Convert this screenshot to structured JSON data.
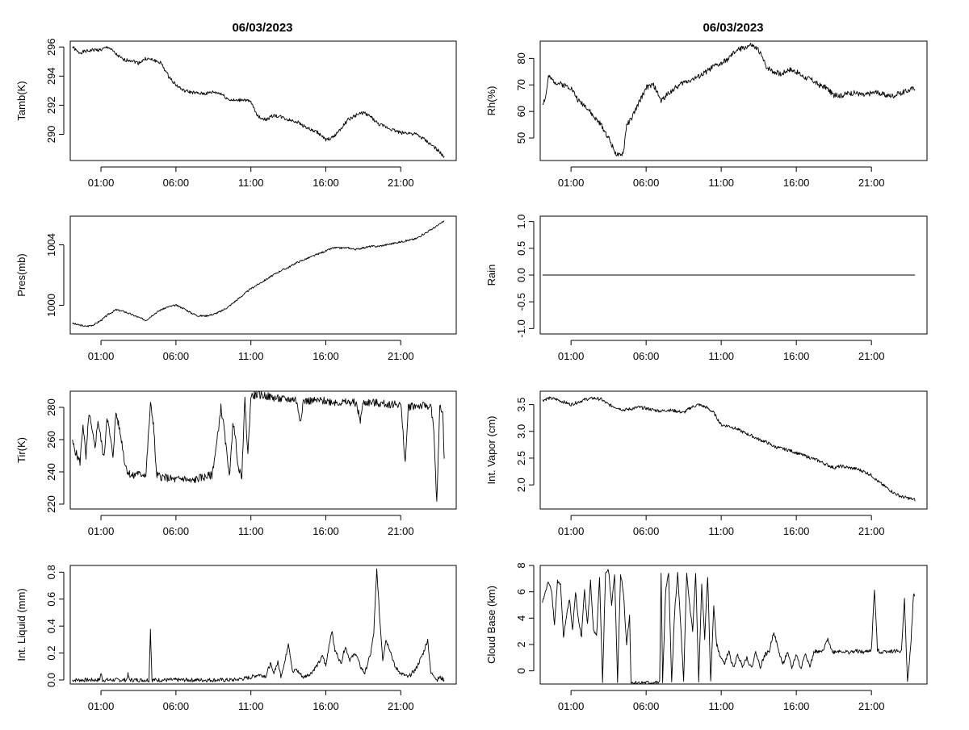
{
  "titles": {
    "left": "06/03/2023",
    "right": "06/03/2023"
  },
  "x_axis": {
    "ticks": [
      1,
      6,
      11,
      16,
      21
    ],
    "tick_labels": [
      "01:00",
      "06:00",
      "11:00",
      "16:00",
      "21:00"
    ],
    "range": [
      -1.05,
      24.7
    ]
  },
  "chart_data": [
    {
      "type": "line",
      "name": "tamb",
      "ylabel": "Tamb(K)",
      "ylim": [
        288.2,
        296.4
      ],
      "yticks": [
        290,
        292,
        294,
        296
      ],
      "ytick_labels": [
        "290",
        "292",
        "294",
        "296"
      ],
      "seed": 1,
      "x": [
        -0.9,
        -0.5,
        0.0,
        0.5,
        1.0,
        1.5,
        2.0,
        2.5,
        3.0,
        3.5,
        4.0,
        4.5,
        5.0,
        5.5,
        6.0,
        6.5,
        7.0,
        7.5,
        8.0,
        8.5,
        9.0,
        9.5,
        10.0,
        10.5,
        11.0,
        11.5,
        12.0,
        12.5,
        13.0,
        13.5,
        14.0,
        14.5,
        15.0,
        15.5,
        16.0,
        16.5,
        17.0,
        17.5,
        18.0,
        18.5,
        19.0,
        19.5,
        20.0,
        20.5,
        21.0,
        21.5,
        22.0,
        22.5,
        23.0,
        23.5,
        23.9
      ],
      "y": [
        296.0,
        295.6,
        295.7,
        295.8,
        295.8,
        296.0,
        295.5,
        295.1,
        295.1,
        294.9,
        295.2,
        295.1,
        294.9,
        294.0,
        293.4,
        293.0,
        292.9,
        292.8,
        292.8,
        292.9,
        292.8,
        292.4,
        292.3,
        292.4,
        292.2,
        291.2,
        291.0,
        291.3,
        291.2,
        291.0,
        290.9,
        290.6,
        290.3,
        290.1,
        289.6,
        289.8,
        290.4,
        291.0,
        291.3,
        291.5,
        291.2,
        290.7,
        290.5,
        290.3,
        290.1,
        290.1,
        290.0,
        289.7,
        289.3,
        288.9,
        288.4
      ],
      "noise": 0.12
    },
    {
      "type": "line",
      "name": "rh",
      "ylabel": "Rh(%)",
      "ylim": [
        41.5,
        86.5
      ],
      "yticks": [
        50,
        60,
        70,
        80
      ],
      "ytick_labels": [
        "50",
        "60",
        "70",
        "80"
      ],
      "seed": 2,
      "x": [
        -0.9,
        -0.7,
        -0.5,
        -0.3,
        0.0,
        0.5,
        1.0,
        1.5,
        2.0,
        2.5,
        3.0,
        3.5,
        4.0,
        4.3,
        4.5,
        4.7,
        5.0,
        5.5,
        6.0,
        6.5,
        7.0,
        7.5,
        8.0,
        8.5,
        9.0,
        9.5,
        10.0,
        10.5,
        11.0,
        11.5,
        12.0,
        12.5,
        13.0,
        13.5,
        14.0,
        14.5,
        15.0,
        15.5,
        16.0,
        16.5,
        17.0,
        17.5,
        18.0,
        18.5,
        19.0,
        19.5,
        20.0,
        20.5,
        21.0,
        21.5,
        22.0,
        22.5,
        23.0,
        23.5,
        23.9
      ],
      "y": [
        63,
        65,
        73,
        72,
        71,
        70,
        69,
        64,
        62,
        58,
        55,
        50,
        44,
        43,
        45,
        55,
        57,
        63,
        69,
        70,
        64,
        67,
        69,
        71,
        72,
        73,
        75,
        77,
        78,
        80,
        83,
        84,
        85,
        83,
        77,
        75,
        74,
        76,
        75,
        73,
        72,
        70,
        69,
        66,
        66,
        67,
        67,
        66,
        67,
        67,
        66,
        66,
        67,
        68,
        69
      ],
      "noise": 1.0
    },
    {
      "type": "line",
      "name": "pres",
      "ylabel": "Pres(mb)",
      "ylim": [
        998.1,
        1005.9
      ],
      "yticks": [
        1000,
        1004
      ],
      "ytick_labels": [
        "1000",
        "1004"
      ],
      "seed": 3,
      "x": [
        -0.9,
        -0.5,
        0.0,
        0.5,
        1.0,
        1.5,
        2.0,
        2.5,
        3.0,
        3.5,
        4.0,
        4.5,
        5.0,
        5.5,
        6.0,
        6.5,
        7.0,
        7.5,
        8.0,
        8.5,
        9.0,
        9.5,
        10.0,
        10.5,
        11.0,
        11.5,
        12.0,
        12.5,
        13.0,
        13.5,
        14.0,
        14.5,
        15.0,
        15.5,
        16.0,
        16.5,
        17.0,
        17.5,
        18.0,
        18.5,
        19.0,
        19.5,
        20.0,
        20.5,
        21.0,
        21.5,
        22.0,
        22.5,
        23.0,
        23.5,
        23.9
      ],
      "y": [
        998.8,
        998.7,
        998.6,
        998.7,
        999.0,
        999.4,
        999.7,
        999.6,
        999.4,
        999.2,
        999.0,
        999.4,
        999.7,
        999.9,
        1000.0,
        999.8,
        999.5,
        999.3,
        999.3,
        999.4,
        999.6,
        999.9,
        1000.3,
        1000.7,
        1001.1,
        1001.4,
        1001.7,
        1002.0,
        1002.3,
        1002.5,
        1002.8,
        1003.0,
        1003.2,
        1003.4,
        1003.6,
        1003.8,
        1003.8,
        1003.8,
        1003.7,
        1003.8,
        1003.9,
        1003.9,
        1004.0,
        1004.1,
        1004.2,
        1004.3,
        1004.4,
        1004.7,
        1005.0,
        1005.3,
        1005.6
      ],
      "noise": 0.06
    },
    {
      "type": "line",
      "name": "rain",
      "ylabel": "Rain",
      "ylim": [
        -1.1,
        1.1
      ],
      "yticks": [
        -1.0,
        -0.5,
        0.0,
        0.5,
        1.0
      ],
      "ytick_labels": [
        "-1.0",
        "-0.5",
        "0.0",
        "0.5",
        "1.0"
      ],
      "seed": 4,
      "x": [
        -0.9,
        23.9
      ],
      "y": [
        0.0,
        0.0
      ],
      "noise": 0
    },
    {
      "type": "line",
      "name": "tir",
      "ylabel": "Tir(K)",
      "ylim": [
        217,
        290
      ],
      "yticks": [
        220,
        240,
        260,
        280
      ],
      "ytick_labels": [
        "220",
        "240",
        "260",
        "280"
      ],
      "seed": 5,
      "x": [
        -0.9,
        -0.6,
        -0.4,
        -0.2,
        0.0,
        0.2,
        0.4,
        0.6,
        0.8,
        1.0,
        1.2,
        1.4,
        1.6,
        1.8,
        2.0,
        2.2,
        2.4,
        2.6,
        2.8,
        3.0,
        3.2,
        3.4,
        3.6,
        3.8,
        4.0,
        4.3,
        4.5,
        4.7,
        5.0,
        5.5,
        6.0,
        6.5,
        7.0,
        7.5,
        8.0,
        8.4,
        8.7,
        9.0,
        9.2,
        9.4,
        9.6,
        9.8,
        10.0,
        10.2,
        10.4,
        10.6,
        10.8,
        11.0,
        11.5,
        12.0,
        12.5,
        13.0,
        13.5,
        14.0,
        14.3,
        14.5,
        15.0,
        16.0,
        17.0,
        18.0,
        18.3,
        18.5,
        19.0,
        20.0,
        21.0,
        21.3,
        21.5,
        21.7,
        22.0,
        22.5,
        23.0,
        23.2,
        23.4,
        23.6,
        23.8,
        23.9
      ],
      "y": [
        258,
        250,
        246,
        270,
        248,
        277,
        265,
        255,
        272,
        260,
        248,
        275,
        262,
        250,
        277,
        268,
        258,
        245,
        240,
        238,
        237,
        240,
        238,
        239,
        238,
        282,
        270,
        238,
        237,
        236,
        235,
        236,
        234,
        236,
        237,
        238,
        256,
        280,
        268,
        250,
        238,
        272,
        258,
        240,
        238,
        285,
        250,
        287,
        288,
        287,
        286,
        285,
        285,
        285,
        272,
        284,
        284,
        284,
        283,
        283,
        272,
        283,
        283,
        282,
        282,
        245,
        280,
        281,
        281,
        281,
        281,
        265,
        220,
        280,
        277,
        248
      ],
      "noise": 2.5
    },
    {
      "type": "line",
      "name": "vapor",
      "ylabel": "Int. Vapor (cm)",
      "ylim": [
        1.55,
        3.75
      ],
      "yticks": [
        2.0,
        2.5,
        3.0,
        3.5
      ],
      "ytick_labels": [
        "2.0",
        "2.5",
        "3.0",
        "3.5"
      ],
      "seed": 6,
      "x": [
        -0.9,
        -0.5,
        0.0,
        0.5,
        1.0,
        1.5,
        2.0,
        2.5,
        3.0,
        3.5,
        4.0,
        4.5,
        5.0,
        5.5,
        6.0,
        6.5,
        7.0,
        7.5,
        8.0,
        8.5,
        9.0,
        9.5,
        10.0,
        10.5,
        11.0,
        11.5,
        12.0,
        12.5,
        13.0,
        13.5,
        14.0,
        14.5,
        15.0,
        15.5,
        16.0,
        16.5,
        17.0,
        17.5,
        18.0,
        18.5,
        19.0,
        19.5,
        20.0,
        20.5,
        21.0,
        21.5,
        22.0,
        22.5,
        23.0,
        23.5,
        23.9
      ],
      "y": [
        3.58,
        3.62,
        3.6,
        3.55,
        3.5,
        3.55,
        3.6,
        3.62,
        3.6,
        3.5,
        3.45,
        3.4,
        3.42,
        3.45,
        3.43,
        3.4,
        3.38,
        3.4,
        3.38,
        3.35,
        3.45,
        3.5,
        3.45,
        3.35,
        3.12,
        3.1,
        3.05,
        2.98,
        2.92,
        2.85,
        2.8,
        2.72,
        2.68,
        2.65,
        2.6,
        2.55,
        2.5,
        2.45,
        2.38,
        2.32,
        2.35,
        2.32,
        2.3,
        2.25,
        2.18,
        2.05,
        1.95,
        1.85,
        1.78,
        1.75,
        1.72
      ],
      "noise": 0.03
    },
    {
      "type": "line",
      "name": "liquid",
      "ylabel": "Int. Liquid (mm)",
      "ylim": [
        -0.03,
        0.85
      ],
      "yticks": [
        0.0,
        0.2,
        0.4,
        0.6,
        0.8
      ],
      "ytick_labels": [
        "0.0",
        "0.2",
        "0.4",
        "0.6",
        "0.8"
      ],
      "seed": 7,
      "x": [
        -0.9,
        0.9,
        1.0,
        1.1,
        2.7,
        2.8,
        2.9,
        4.2,
        4.3,
        4.4,
        4.5,
        9.8,
        10.5,
        11.0,
        11.5,
        12.0,
        12.3,
        12.5,
        12.8,
        13.0,
        13.3,
        13.5,
        13.8,
        14.0,
        14.5,
        15.0,
        15.5,
        15.8,
        16.0,
        16.2,
        16.4,
        16.6,
        16.8,
        17.0,
        17.3,
        17.6,
        18.0,
        18.3,
        18.6,
        19.0,
        19.2,
        19.4,
        19.6,
        19.8,
        20.0,
        20.3,
        20.6,
        21.0,
        21.5,
        22.0,
        22.5,
        22.8,
        23.0,
        23.2,
        23.4,
        23.6,
        23.9
      ],
      "y": [
        0.0,
        0.0,
        0.05,
        0.0,
        0.0,
        0.04,
        0.0,
        0.0,
        0.38,
        0.0,
        0.0,
        0.0,
        0.01,
        0.02,
        0.04,
        0.03,
        0.12,
        0.05,
        0.13,
        0.03,
        0.15,
        0.28,
        0.05,
        0.08,
        0.02,
        0.05,
        0.12,
        0.18,
        0.1,
        0.25,
        0.37,
        0.22,
        0.18,
        0.12,
        0.25,
        0.15,
        0.2,
        0.1,
        0.05,
        0.2,
        0.35,
        0.82,
        0.45,
        0.15,
        0.3,
        0.22,
        0.1,
        0.05,
        0.02,
        0.08,
        0.2,
        0.3,
        0.05,
        0.04,
        0.0,
        0.02,
        0.0
      ],
      "noise": 0.015
    },
    {
      "type": "line",
      "name": "cloudbase",
      "ylabel": "Cloud Base (km)",
      "ylim": [
        -1.0,
        8.0
      ],
      "yticks": [
        0,
        2,
        4,
        6,
        8
      ],
      "ytick_labels": [
        "0",
        "2",
        "4",
        "6",
        "8"
      ],
      "seed": 8,
      "x": [
        -0.9,
        -0.7,
        -0.5,
        -0.3,
        -0.1,
        0.1,
        0.3,
        0.5,
        0.7,
        0.9,
        1.1,
        1.3,
        1.5,
        1.7,
        1.9,
        2.1,
        2.3,
        2.5,
        2.7,
        2.9,
        3.1,
        3.3,
        3.5,
        3.7,
        3.9,
        4.1,
        4.3,
        4.5,
        4.7,
        4.9,
        5.0,
        6.0,
        6.9,
        7.0,
        7.1,
        7.3,
        7.5,
        7.7,
        7.9,
        8.1,
        8.3,
        8.5,
        8.7,
        8.9,
        9.1,
        9.3,
        9.5,
        9.7,
        9.9,
        10.1,
        10.3,
        10.5,
        10.7,
        10.9,
        11.2,
        11.5,
        11.8,
        12.1,
        12.4,
        12.7,
        13.0,
        13.3,
        13.6,
        13.9,
        14.2,
        14.5,
        14.8,
        15.1,
        15.4,
        15.7,
        16.0,
        16.3,
        16.6,
        16.9,
        17.2,
        17.5,
        17.8,
        18.1,
        18.4,
        18.7,
        19.0,
        19.5,
        20.0,
        20.5,
        21.0,
        21.2,
        21.4,
        21.6,
        22.0,
        22.5,
        23.0,
        23.2,
        23.4,
        23.6,
        23.8,
        23.9
      ],
      "y": [
        5.2,
        6.0,
        6.8,
        6.2,
        3.5,
        6.8,
        6.5,
        2.5,
        4.2,
        5.5,
        3.0,
        6.0,
        3.8,
        2.6,
        6.2,
        3.5,
        6.8,
        3.0,
        2.6,
        7.0,
        -0.9,
        7.5,
        7.6,
        5.0,
        7.4,
        -0.9,
        7.4,
        5.8,
        2.0,
        4.2,
        -0.9,
        -0.9,
        -0.9,
        7.4,
        -0.9,
        6.0,
        7.4,
        -0.9,
        4.5,
        7.4,
        3.5,
        -0.9,
        7.4,
        5.0,
        3.0,
        7.4,
        -0.9,
        6.5,
        2.5,
        7.2,
        -0.9,
        5.0,
        2.0,
        1.2,
        0.5,
        1.5,
        0.2,
        1.2,
        0.4,
        1.0,
        0.2,
        1.4,
        0.3,
        1.2,
        1.5,
        3.0,
        1.6,
        0.5,
        1.4,
        0.2,
        1.3,
        0.1,
        1.4,
        0.3,
        1.5,
        1.4,
        1.5,
        2.5,
        1.4,
        1.5,
        1.5,
        1.4,
        1.5,
        1.4,
        1.6,
        6.2,
        1.6,
        1.4,
        1.5,
        1.5,
        1.5,
        5.5,
        -0.9,
        1.6,
        5.7,
        5.8
      ],
      "noise": 0.15
    }
  ]
}
